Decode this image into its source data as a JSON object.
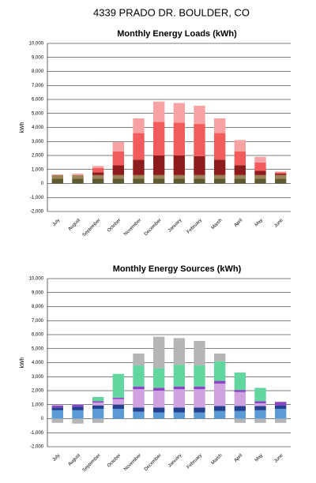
{
  "title": "4339 PRADO DR.  BOULDER, CO",
  "chart_data": [
    {
      "type": "bar",
      "stacked": true,
      "title": "Monthly Energy Loads (kWh)",
      "y_label": "kWh",
      "categories": [
        "July",
        "August",
        "September",
        "October",
        "November",
        "December",
        "January",
        "February",
        "March",
        "April",
        "May",
        "June"
      ],
      "series": [
        {
          "color": "#5c5a2e",
          "values": [
            350,
            350,
            350,
            350,
            350,
            350,
            350,
            350,
            350,
            350,
            350,
            350
          ]
        },
        {
          "color": "#9c8456",
          "values": [
            250,
            250,
            250,
            250,
            250,
            250,
            250,
            250,
            250,
            250,
            250,
            250
          ]
        },
        {
          "color": "#8e1c1c",
          "values": [
            0,
            0,
            200,
            700,
            1100,
            1400,
            1400,
            1350,
            1100,
            700,
            300,
            100
          ]
        },
        {
          "color": "#f25c5c",
          "values": [
            0,
            0,
            300,
            1000,
            1900,
            2400,
            2350,
            2300,
            1900,
            1000,
            600,
            100
          ]
        },
        {
          "color": "#f7a3a3",
          "values": [
            50,
            100,
            150,
            650,
            1050,
            1450,
            1400,
            1300,
            1050,
            800,
            400,
            50
          ]
        }
      ],
      "ylim": [
        -2000,
        10000
      ],
      "yticks": [
        {
          "value": -2000,
          "label": "-2,000"
        },
        {
          "value": -1000,
          "label": "-1,000"
        },
        0,
        {
          "value": 1000,
          "label": "1,000"
        },
        {
          "value": 2000,
          "label": "2,000"
        },
        {
          "value": 3000,
          "label": "3,000"
        },
        {
          "value": 4000,
          "label": "4,000"
        },
        {
          "value": 5000,
          "label": "5,000"
        },
        {
          "value": 6000,
          "label": "6,000"
        },
        {
          "value": 7000,
          "label": "7,000"
        },
        {
          "value": 8000,
          "label": "8,000"
        },
        {
          "value": 9000,
          "label": "9,000"
        },
        {
          "value": 10000,
          "label": "10,000"
        }
      ],
      "grid": true
    },
    {
      "type": "bar",
      "stacked": true,
      "title": "Monthly Energy Sources (kWh)",
      "y_label": "kWh",
      "categories": [
        "July",
        "August",
        "September",
        "October",
        "November",
        "December",
        "January",
        "February",
        "March",
        "April",
        "May",
        "June"
      ],
      "series": [
        {
          "color": "#5b9bd5",
          "values": [
            600,
            600,
            700,
            700,
            500,
            450,
            450,
            450,
            550,
            550,
            600,
            700
          ]
        },
        {
          "color": "#23418f",
          "values": [
            200,
            250,
            250,
            300,
            300,
            350,
            350,
            350,
            350,
            350,
            300,
            250
          ]
        },
        {
          "color": "#d0a2e0",
          "values": [
            0,
            0,
            200,
            400,
            1300,
            1200,
            1300,
            1300,
            1600,
            1000,
            200,
            0
          ]
        },
        {
          "color": "#8a44c4",
          "values": [
            150,
            150,
            100,
            100,
            200,
            200,
            200,
            200,
            200,
            150,
            150,
            250
          ]
        },
        {
          "color": "#62d69e",
          "values": [
            0,
            0,
            300,
            1700,
            1500,
            1400,
            1550,
            1500,
            1400,
            1250,
            950,
            0
          ]
        },
        {
          "color": "#b5b5b5",
          "values": [
            -300,
            -350,
            -300,
            0,
            850,
            2250,
            1900,
            1750,
            550,
            -300,
            -300,
            -300
          ]
        }
      ],
      "ylim": [
        -2000,
        10000
      ],
      "yticks": [
        {
          "value": -2000,
          "label": "-2,000"
        },
        {
          "value": -1000,
          "label": "-1,000"
        },
        0,
        {
          "value": 1000,
          "label": "1,000"
        },
        {
          "value": 2000,
          "label": "2,000"
        },
        {
          "value": 3000,
          "label": "3,000"
        },
        {
          "value": 4000,
          "label": "4,000"
        },
        {
          "value": 5000,
          "label": "5,000"
        },
        {
          "value": 6000,
          "label": "6,000"
        },
        {
          "value": 7000,
          "label": "7,000"
        },
        {
          "value": 8000,
          "label": "8,000"
        },
        {
          "value": 9000,
          "label": "9,000"
        },
        {
          "value": 10000,
          "label": "10,000"
        }
      ],
      "grid": true
    }
  ]
}
